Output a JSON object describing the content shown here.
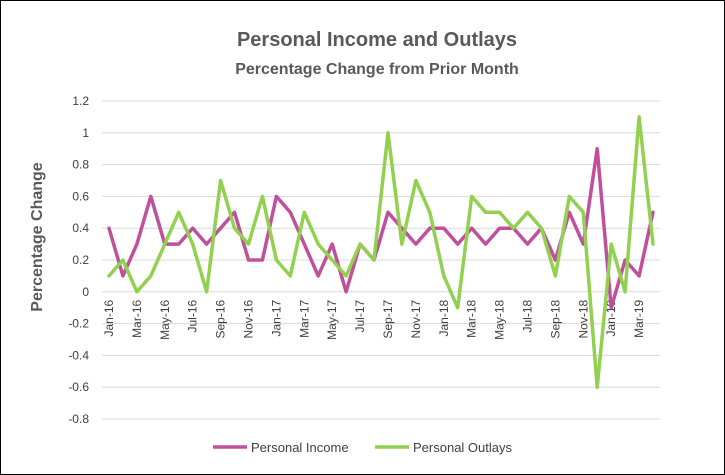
{
  "chart_data": {
    "type": "line",
    "title": "Personal Income and Outlays",
    "subtitle": "Percentage Change from Prior Month",
    "ylabel": "Percentage Change",
    "xlabel": "",
    "ylim": [
      -0.8,
      1.2
    ],
    "yticks": [
      "1.2",
      "1",
      "0.8",
      "0.6",
      "0.4",
      "0.2",
      "0",
      "-0.2",
      "-0.4",
      "-0.6",
      "-0.8"
    ],
    "grid": true,
    "legend_position": "bottom",
    "x": [
      "Jan-16",
      "Feb-16",
      "Mar-16",
      "Apr-16",
      "May-16",
      "Jun-16",
      "Jul-16",
      "Aug-16",
      "Sep-16",
      "Oct-16",
      "Nov-16",
      "Dec-16",
      "Jan-17",
      "Feb-17",
      "Mar-17",
      "Apr-17",
      "May-17",
      "Jun-17",
      "Jul-17",
      "Aug-17",
      "Sep-17",
      "Oct-17",
      "Nov-17",
      "Dec-17",
      "Jan-18",
      "Feb-18",
      "Mar-18",
      "Apr-18",
      "May-18",
      "Jun-18",
      "Jul-18",
      "Aug-18",
      "Sep-18",
      "Oct-18",
      "Nov-18",
      "Dec-18",
      "Jan-19",
      "Feb-19",
      "Mar-19",
      "Apr-19"
    ],
    "xtick_labels": [
      "Jan-16",
      "Mar-16",
      "May-16",
      "Jul-16",
      "Sep-16",
      "Nov-16",
      "Jan-17",
      "Mar-17",
      "May-17",
      "Jul-17",
      "Sep-17",
      "Nov-17",
      "Jan-18",
      "Mar-18",
      "May-18",
      "Jul-18",
      "Sep-18",
      "Nov-18",
      "Jan-19",
      "Mar-19"
    ],
    "series": [
      {
        "name": "Personal Income",
        "color": "#C0509C",
        "values": [
          0.4,
          0.1,
          0.3,
          0.6,
          0.3,
          0.3,
          0.4,
          0.3,
          0.4,
          0.5,
          0.2,
          0.2,
          0.6,
          0.5,
          0.3,
          0.1,
          0.3,
          0.0,
          0.3,
          0.2,
          0.5,
          0.4,
          0.3,
          0.4,
          0.4,
          0.3,
          0.4,
          0.3,
          0.4,
          0.4,
          0.3,
          0.4,
          0.2,
          0.5,
          0.3,
          0.9,
          -0.1,
          0.2,
          0.1,
          0.5
        ]
      },
      {
        "name": "Personal Outlays",
        "color": "#92D050",
        "values": [
          0.1,
          0.2,
          0.0,
          0.1,
          0.3,
          0.5,
          0.3,
          0.0,
          0.7,
          0.4,
          0.3,
          0.6,
          0.2,
          0.1,
          0.5,
          0.3,
          0.2,
          0.1,
          0.3,
          0.2,
          1.0,
          0.3,
          0.7,
          0.5,
          0.1,
          -0.1,
          0.6,
          0.5,
          0.5,
          0.4,
          0.5,
          0.4,
          0.1,
          0.6,
          0.5,
          -0.6,
          0.3,
          0.0,
          1.1,
          0.3
        ]
      }
    ]
  }
}
